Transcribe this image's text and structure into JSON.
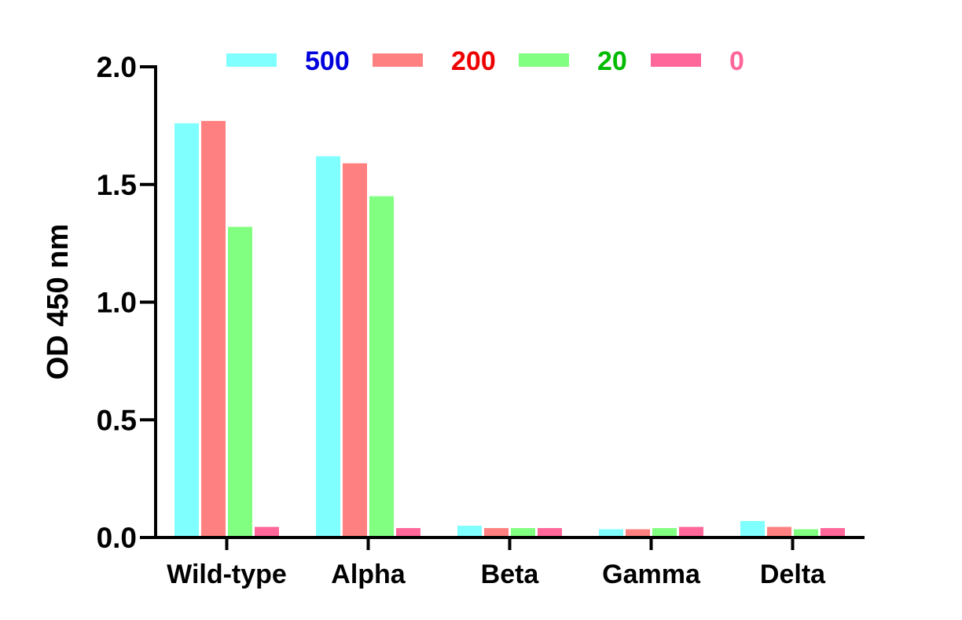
{
  "chart_data": {
    "type": "bar",
    "title": "",
    "xlabel": "",
    "ylabel": "OD 450 nm",
    "ylim": [
      0,
      2.0
    ],
    "yticks": [
      0.0,
      0.5,
      1.0,
      1.5,
      2.0
    ],
    "ytick_labels": [
      "0.0",
      "0.5",
      "1.0",
      "1.5",
      "2.0"
    ],
    "categories": [
      "Wild-type",
      "Alpha",
      "Beta",
      "Gamma",
      "Delta"
    ],
    "series": [
      {
        "name": "500",
        "color": "#80FFFF",
        "label_color": "#0000DD",
        "values": [
          1.76,
          1.62,
          0.05,
          0.035,
          0.07
        ]
      },
      {
        "name": "200",
        "color": "#FF8080",
        "label_color": "#EE0000",
        "values": [
          1.77,
          1.59,
          0.04,
          0.035,
          0.045
        ]
      },
      {
        "name": "20",
        "color": "#80FF80",
        "label_color": "#00BB00",
        "values": [
          1.32,
          1.45,
          0.04,
          0.04,
          0.035
        ]
      },
      {
        "name": "0",
        "color": "#FF6699",
        "label_color": "#FF6699",
        "values": [
          0.045,
          0.04,
          0.04,
          0.045,
          0.04
        ]
      }
    ],
    "legend_position": "top",
    "grid": false
  }
}
